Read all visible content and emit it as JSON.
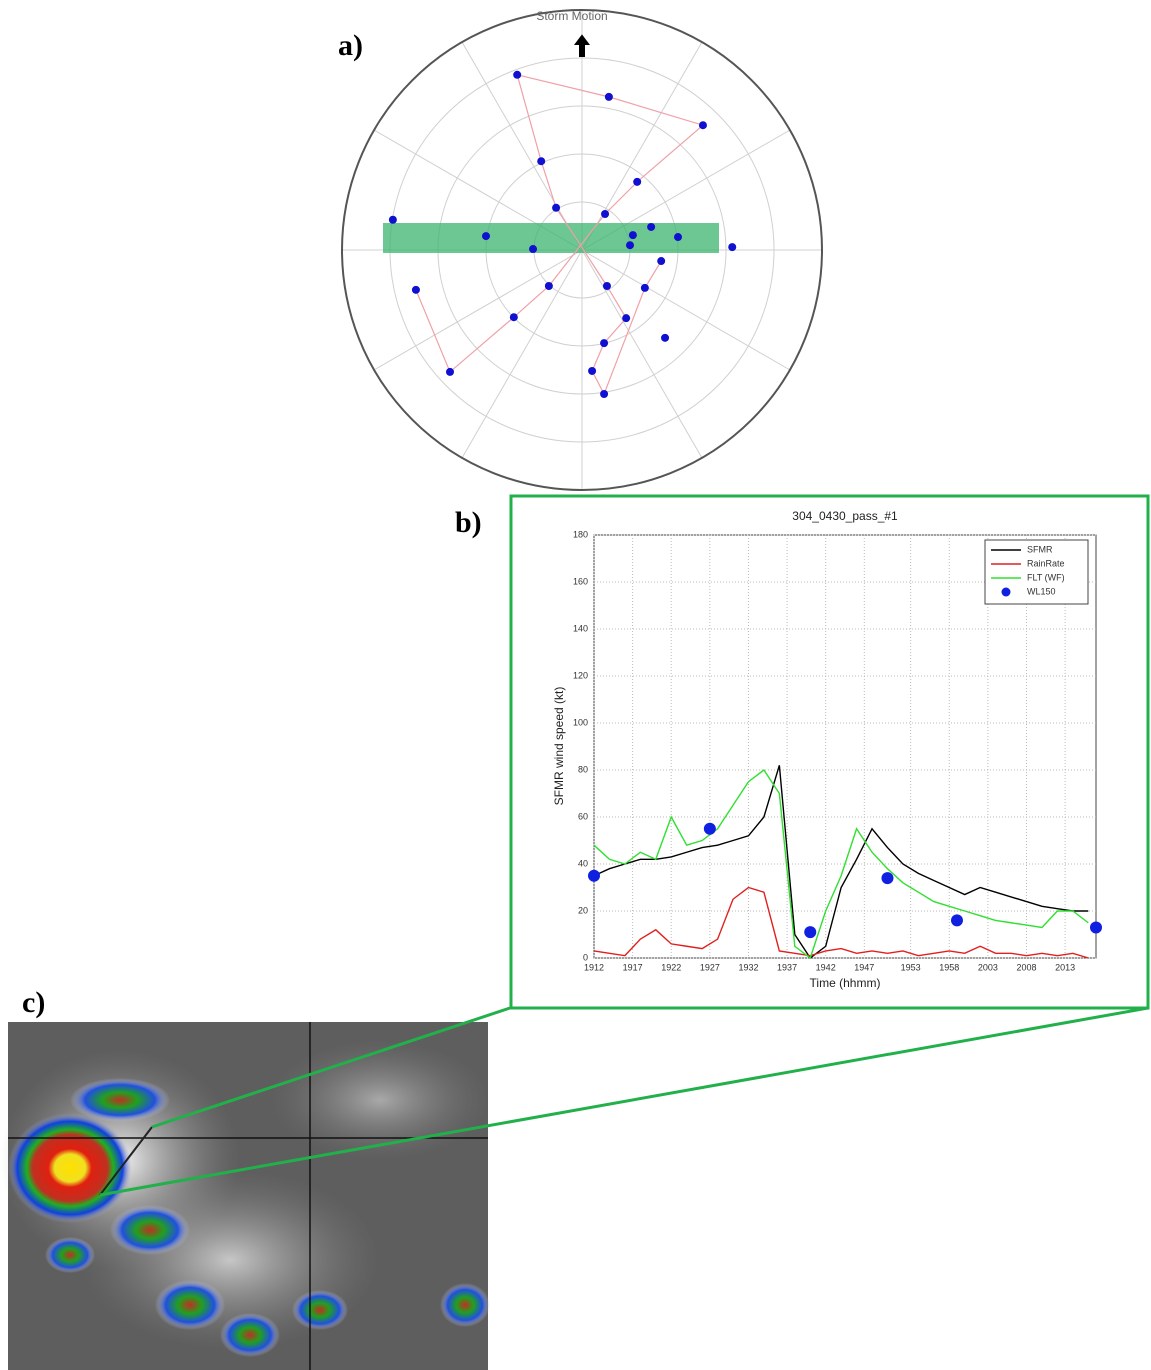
{
  "panel_labels": [
    "a)",
    "b)",
    "c)"
  ],
  "chart_data": [
    {
      "type": "scatter",
      "title": "Storm Motion",
      "xlim": [
        -5,
        5
      ],
      "ylim": [
        -5,
        5
      ],
      "color": "#1010d0",
      "line_color": "#f0a0a8",
      "series": [
        {
          "line": true,
          "x": [
            -3.46,
            -2.75,
            -1.42,
            -0.69,
            0.48,
            1.15,
            2.52,
            0.56,
            -1.35,
            -0.85,
            -0.54,
            0.52,
            0.92,
            0.46,
            0.21,
            0.46,
            1.31,
            1.65
          ],
          "y": [
            -0.83,
            -2.54,
            -1.4,
            -0.75,
            0.75,
            1.42,
            2.6,
            3.19,
            3.65,
            1.85,
            0.88,
            -0.75,
            -1.42,
            -1.94,
            -2.52,
            -3.0,
            -0.79,
            -0.23
          ]
        },
        {
          "line": false,
          "x": [
            -3.94,
            -2.0,
            -1.02,
            1.0,
            1.06,
            1.44,
            2.0,
            3.13,
            1.73
          ],
          "y": [
            0.63,
            0.29,
            0.02,
            0.1,
            0.31,
            0.48,
            0.27,
            0.06,
            -1.83
          ]
        }
      ]
    },
    {
      "type": "line",
      "title": "304_0430_pass_#1",
      "x_label": "Time (hhmm)",
      "y_label": "SFMR wind speed (kt)",
      "xlim": [
        1152,
        1217
      ],
      "ylim": [
        0,
        180
      ],
      "grid": true,
      "legend": "upper-right",
      "yticks": [
        0,
        20,
        40,
        60,
        80,
        100,
        120,
        140,
        160,
        180
      ],
      "xticks": [
        {
          "value": 1152,
          "label": "1912"
        },
        {
          "value": 1157,
          "label": "1917"
        },
        {
          "value": 1162,
          "label": "1922"
        },
        {
          "value": 1167,
          "label": "1927"
        },
        {
          "value": 1172,
          "label": "1932"
        },
        {
          "value": 1177,
          "label": "1937"
        },
        {
          "value": 1182,
          "label": "1942"
        },
        {
          "value": 1187,
          "label": "1947"
        },
        {
          "value": 1193,
          "label": "1953"
        },
        {
          "value": 1198,
          "label": "1958"
        },
        {
          "value": 1203,
          "label": "2003"
        },
        {
          "value": 1208,
          "label": "2008"
        },
        {
          "value": 1213,
          "label": "2013"
        }
      ],
      "x": [
        1152,
        1154,
        1156,
        1158,
        1160,
        1162,
        1164,
        1166,
        1168,
        1170,
        1172,
        1174,
        1176,
        1178,
        1180,
        1182,
        1184,
        1186,
        1188,
        1190,
        1192,
        1194,
        1196,
        1198,
        1200,
        1202,
        1204,
        1206,
        1208,
        1210,
        1212,
        1214,
        1216
      ],
      "series": [
        {
          "name": "SFMR",
          "color": "#000000",
          "style": "line",
          "values": [
            35,
            38,
            40,
            42,
            42,
            43,
            45,
            47,
            48,
            50,
            52,
            60,
            82,
            10,
            0,
            5,
            30,
            42,
            55,
            47,
            40,
            36,
            33,
            30,
            27,
            30,
            28,
            26,
            24,
            22,
            21,
            20,
            20
          ]
        },
        {
          "name": "RainRate",
          "color": "#e02020",
          "style": "line",
          "values": [
            3,
            2,
            1,
            8,
            12,
            6,
            5,
            4,
            8,
            25,
            30,
            28,
            3,
            2,
            1,
            3,
            4,
            2,
            3,
            2,
            3,
            1,
            2,
            3,
            2,
            5,
            2,
            2,
            1,
            2,
            1,
            2,
            0
          ]
        },
        {
          "name": "FLT (WF)",
          "color": "#30e030",
          "style": "line",
          "values": [
            48,
            42,
            40,
            45,
            42,
            60,
            48,
            50,
            55,
            65,
            75,
            80,
            70,
            5,
            0,
            20,
            35,
            55,
            45,
            38,
            32,
            28,
            24,
            22,
            20,
            18,
            16,
            15,
            14,
            13,
            20,
            20,
            15
          ]
        },
        {
          "name": "WL150",
          "color": "#1020e0",
          "style": "marker",
          "x": [
            1152,
            1167,
            1180,
            1190,
            1199,
            1217
          ],
          "values": [
            35,
            55,
            11,
            34,
            16,
            13
          ]
        }
      ]
    }
  ]
}
